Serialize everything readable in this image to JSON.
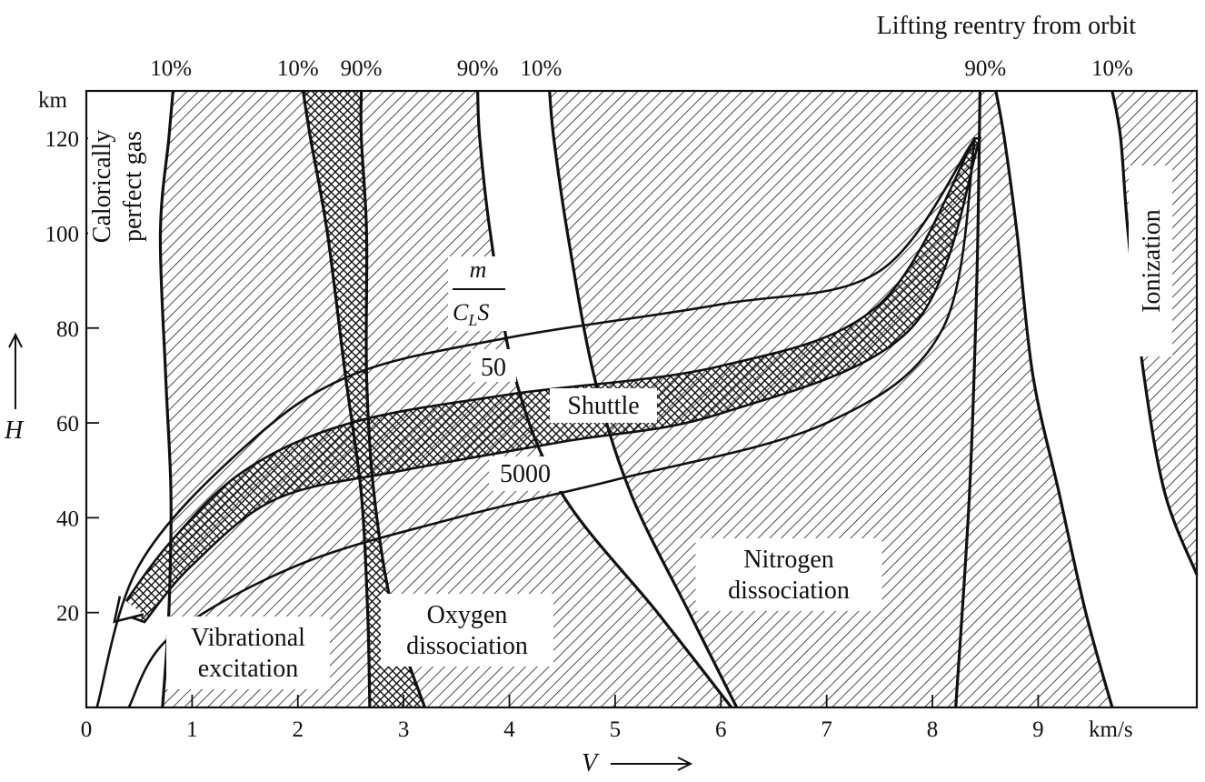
{
  "chart_data": {
    "type": "area",
    "title": "Lifting reentry from orbit",
    "xlabel": "V",
    "ylabel": "H",
    "x_unit": "km/s",
    "y_unit": "km",
    "xlim": [
      0,
      10.5
    ],
    "ylim": [
      0,
      130
    ],
    "x_ticks": [
      "0",
      "1",
      "2",
      "3",
      "4",
      "5",
      "6",
      "7",
      "8",
      "9"
    ],
    "y_ticks": [
      "20",
      "40",
      "60",
      "80",
      "100",
      "120"
    ],
    "regions": [
      {
        "label": "Calorically perfect gas",
        "lines": [
          "Calorically",
          "perfect gas"
        ]
      },
      {
        "label": "Vibrational excitation",
        "lines": [
          "Vibrational",
          "excitation"
        ],
        "x_start": 0.8,
        "x_end": 2.7
      },
      {
        "label": "Oxygen dissociation",
        "lines": [
          "Oxygen",
          "dissociation"
        ],
        "x_start": 2.5,
        "x_end": 4.3
      },
      {
        "label": "Nitrogen dissociation",
        "lines": [
          "Nitrogen",
          "dissociation"
        ],
        "x_start": 4.3,
        "x_end": 8.4
      },
      {
        "label": "Ionization",
        "lines": [
          "Ionization"
        ],
        "x_start": 9.8,
        "x_end": 10.5
      }
    ],
    "boundary_labels": [
      {
        "text": "10%",
        "x": 0.8
      },
      {
        "text": "10%",
        "x": 2.0
      },
      {
        "text": "90%",
        "x": 2.6
      },
      {
        "text": "90%",
        "x": 3.7
      },
      {
        "text": "10%",
        "x": 4.3
      },
      {
        "text": "90%",
        "x": 8.5
      },
      {
        "text": "10%",
        "x": 9.7
      }
    ],
    "boundaries": [
      {
        "name": "vib-10",
        "points": [
          [
            0.72,
            0
          ],
          [
            0.78,
            20
          ],
          [
            0.8,
            45
          ],
          [
            0.75,
            70
          ],
          [
            0.7,
            100
          ],
          [
            0.78,
            120
          ],
          [
            0.82,
            130
          ]
        ]
      },
      {
        "name": "vib-90",
        "points": [
          [
            2.68,
            0
          ],
          [
            2.66,
            20
          ],
          [
            2.6,
            45
          ],
          [
            2.45,
            70
          ],
          [
            2.28,
            100
          ],
          [
            2.12,
            120
          ],
          [
            2.05,
            130
          ]
        ]
      },
      {
        "name": "oxy-10",
        "points": [
          [
            3.2,
            0
          ],
          [
            2.9,
            20
          ],
          [
            2.72,
            45
          ],
          [
            2.65,
            70
          ],
          [
            2.65,
            100
          ],
          [
            2.6,
            120
          ],
          [
            2.6,
            130
          ]
        ]
      },
      {
        "name": "oxy-90",
        "points": [
          [
            6.1,
            0
          ],
          [
            5.4,
            20
          ],
          [
            4.5,
            45
          ],
          [
            4.05,
            70
          ],
          [
            3.82,
            100
          ],
          [
            3.72,
            120
          ],
          [
            3.7,
            130
          ]
        ]
      },
      {
        "name": "nit-10",
        "points": [
          [
            6.15,
            0
          ],
          [
            5.7,
            20
          ],
          [
            5.15,
            45
          ],
          [
            4.8,
            70
          ],
          [
            4.55,
            100
          ],
          [
            4.42,
            120
          ],
          [
            4.38,
            130
          ]
        ]
      },
      {
        "name": "nit-90",
        "points": [
          [
            9.7,
            0
          ],
          [
            9.45,
            20
          ],
          [
            9.2,
            45
          ],
          [
            8.95,
            70
          ],
          [
            8.8,
            100
          ],
          [
            8.68,
            120
          ],
          [
            8.6,
            130
          ]
        ]
      },
      {
        "name": "ion-10",
        "points": [
          [
            10.5,
            28
          ],
          [
            10.2,
            45
          ],
          [
            10.0,
            70
          ],
          [
            9.85,
            100
          ],
          [
            9.78,
            120
          ],
          [
            9.7,
            130
          ]
        ]
      },
      {
        "name": "orbit-left",
        "points": [
          [
            8.22,
            0
          ],
          [
            8.35,
            45
          ],
          [
            8.42,
            90
          ],
          [
            8.45,
            130
          ]
        ]
      }
    ],
    "corridor": {
      "label": "m / (C_L S)",
      "label_num": "m",
      "label_den_main": "C",
      "label_den_sub": "L",
      "label_den_tail": "S",
      "series": [
        {
          "name": "50",
          "values": [
            [
              0.1,
              0
            ],
            [
              0.5,
              30
            ],
            [
              1.5,
              55
            ],
            [
              2.5,
              70
            ],
            [
              4.0,
              78
            ],
            [
              6.0,
              85
            ],
            [
              7.5,
              92
            ],
            [
              8.4,
              120
            ]
          ]
        },
        {
          "name": "5000",
          "values": [
            [
              0.4,
              0
            ],
            [
              0.8,
              15
            ],
            [
              2.0,
              30
            ],
            [
              3.5,
              40
            ],
            [
              5.0,
              48
            ],
            [
              7.0,
              60
            ],
            [
              8.1,
              80
            ],
            [
              8.4,
              120
            ]
          ]
        }
      ],
      "shuttle": {
        "label": "Shuttle",
        "upper": [
          [
            0.3,
            20
          ],
          [
            0.8,
            35
          ],
          [
            1.5,
            50
          ],
          [
            2.5,
            60
          ],
          [
            4.0,
            66
          ],
          [
            6.0,
            72
          ],
          [
            7.5,
            85
          ],
          [
            8.4,
            120
          ]
        ],
        "lower": [
          [
            0.55,
            18
          ],
          [
            1.0,
            30
          ],
          [
            1.8,
            44
          ],
          [
            3.0,
            50
          ],
          [
            4.5,
            56
          ],
          [
            6.0,
            62
          ],
          [
            7.8,
            80
          ],
          [
            8.45,
            120
          ]
        ]
      }
    },
    "hatched_bands": [
      {
        "between": [
          "vib-10",
          "vib-90"
        ]
      },
      {
        "between": [
          "oxy-10",
          "oxy-90"
        ]
      },
      {
        "between": [
          "nit-10",
          "nit-90"
        ]
      },
      {
        "between": [
          "ion-10",
          "right-edge"
        ]
      }
    ],
    "crosshatched_band": {
      "between": [
        "vib-90",
        "oxy-10"
      ]
    },
    "grid": false
  }
}
